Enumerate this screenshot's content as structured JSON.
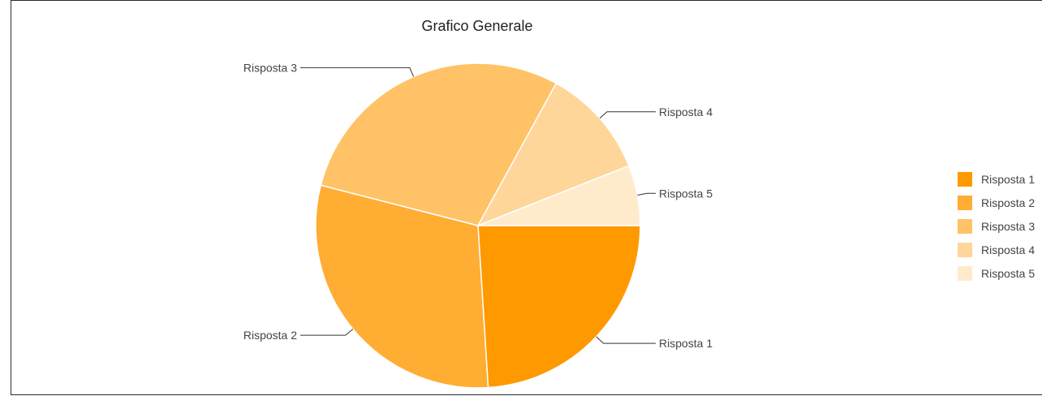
{
  "chart_data": {
    "type": "pie",
    "title": "Grafico Generale",
    "series": [
      {
        "name": "Risposta 1",
        "value": 24,
        "color": "#ff9900"
      },
      {
        "name": "Risposta 2",
        "value": 30,
        "color": "#ffad33"
      },
      {
        "name": "Risposta 3",
        "value": 29,
        "color": "#ffc266"
      },
      {
        "name": "Risposta 4",
        "value": 11,
        "color": "#ffd699"
      },
      {
        "name": "Risposta 5",
        "value": 6,
        "color": "#ffebcc"
      }
    ],
    "legend_position": "right",
    "slice_label_style": "outside callouts"
  }
}
